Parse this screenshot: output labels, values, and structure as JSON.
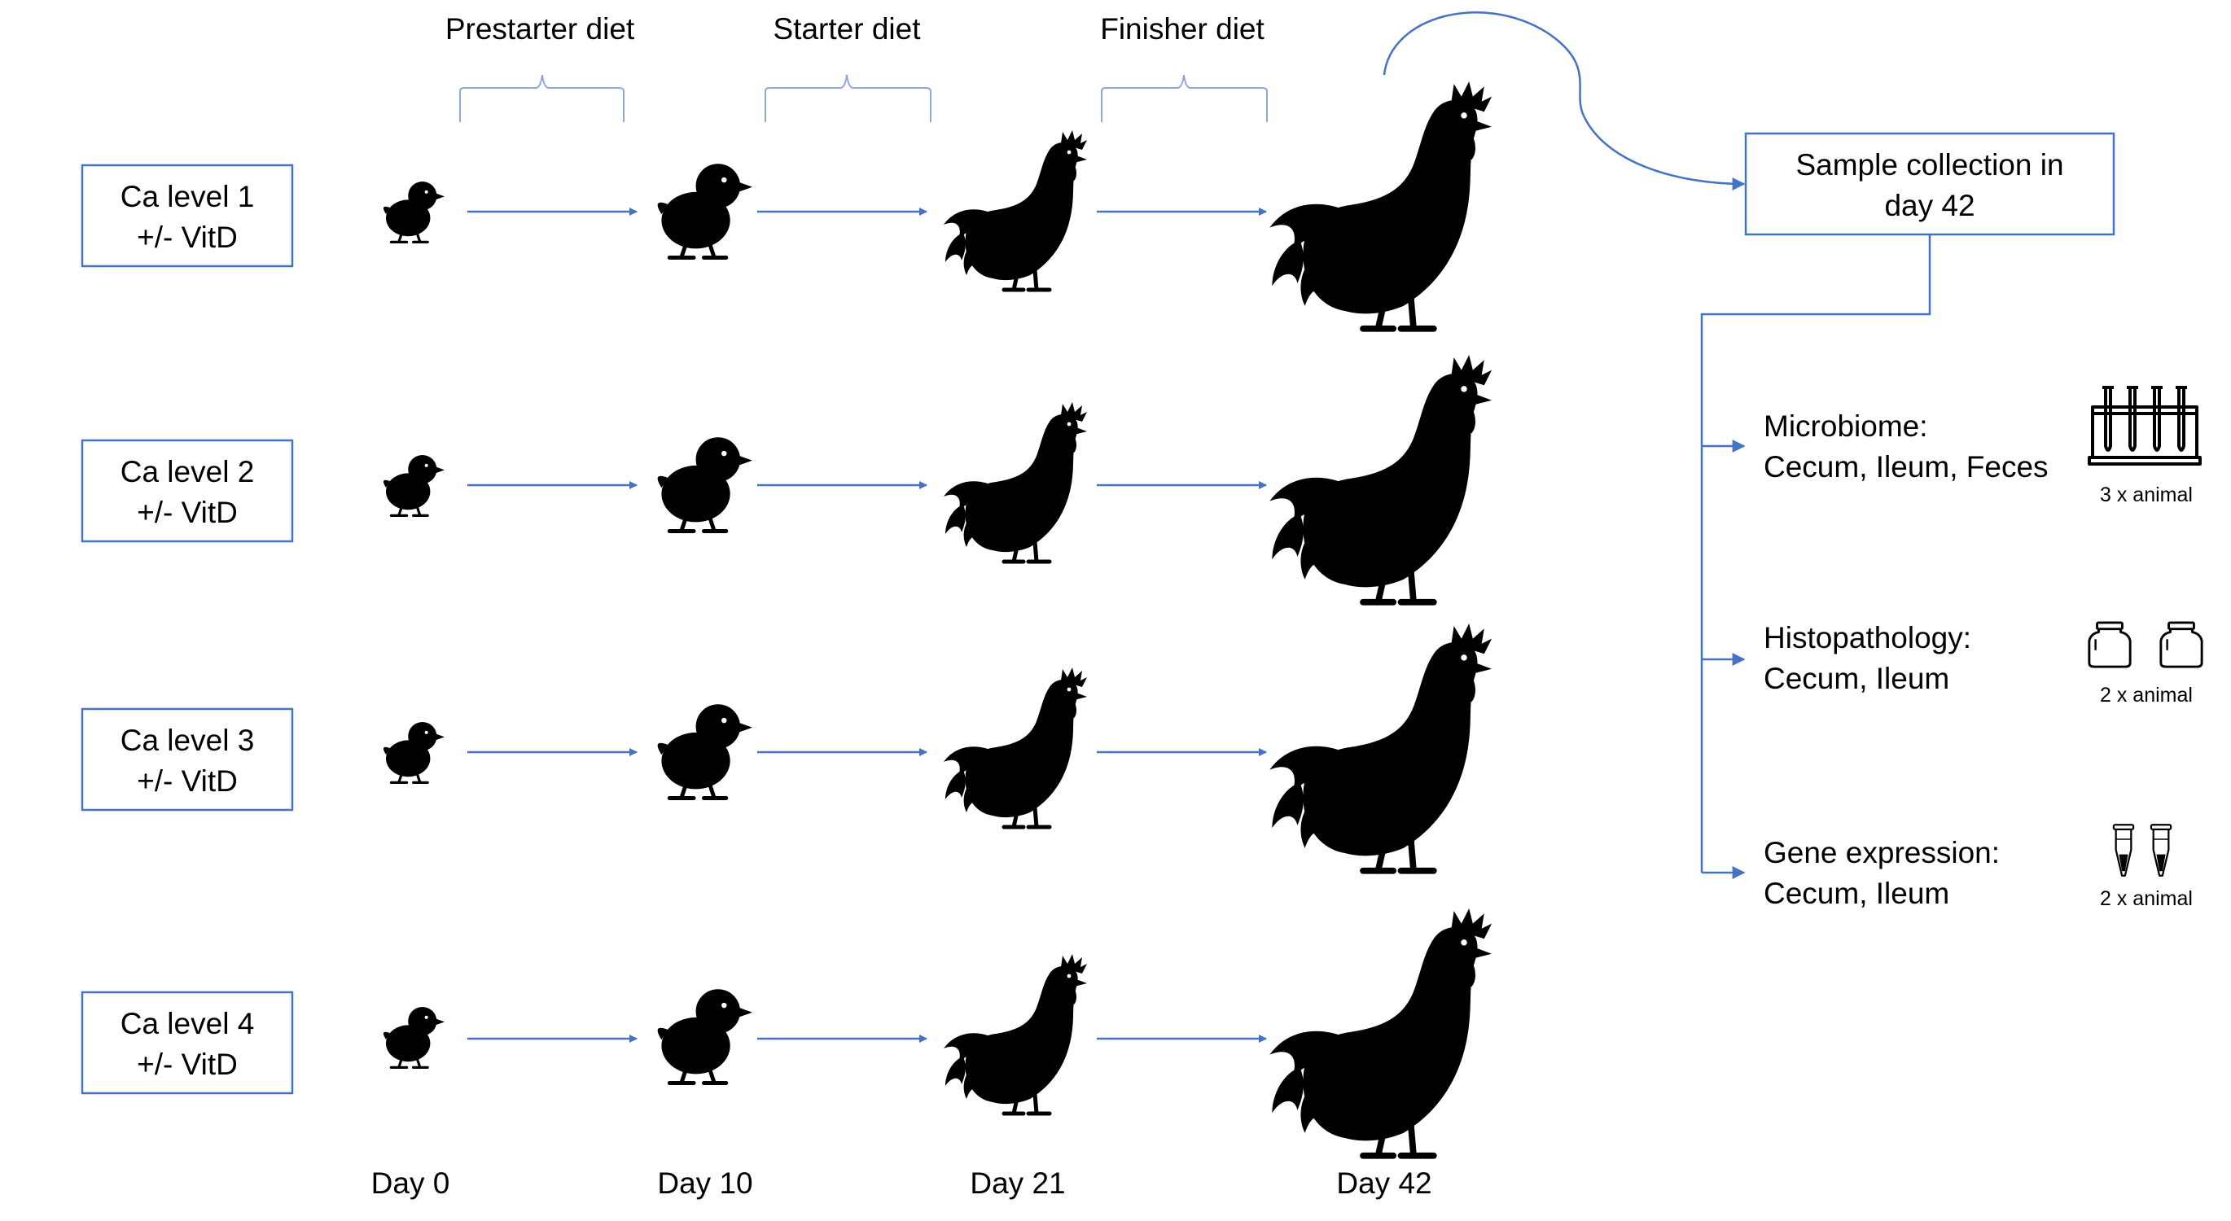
{
  "diet_labels": [
    "Prestarter diet",
    "Starter diet",
    "Finisher diet"
  ],
  "groups": [
    {
      "line1": "Ca level 1",
      "line2": "+/- VitD"
    },
    {
      "line1": "Ca level 2",
      "line2": "+/- VitD"
    },
    {
      "line1": "Ca level 3",
      "line2": "+/- VitD"
    },
    {
      "line1": "Ca level 4",
      "line2": "+/- VitD"
    }
  ],
  "days": [
    "Day 0",
    "Day 10",
    "Day 21",
    "Day 42"
  ],
  "sample": {
    "line1": "Sample collection in",
    "line2": "day 42"
  },
  "analyses": [
    {
      "title": "Microbiome:",
      "tissues": "Cecum, Ileum, Feces",
      "count": "3 x animal",
      "icon": "test-tube-rack-icon"
    },
    {
      "title": "Histopathology:",
      "tissues": "Cecum, Ileum",
      "count": "2 x animal",
      "icon": "specimen-jar-icon"
    },
    {
      "title": "Gene expression:",
      "tissues": "Cecum, Ileum",
      "count": "2 x animal",
      "icon": "microtube-icon"
    }
  ],
  "colors": {
    "accent": "#4472C4",
    "bracket": "#8FA8D9",
    "silhouette": "#000000"
  }
}
